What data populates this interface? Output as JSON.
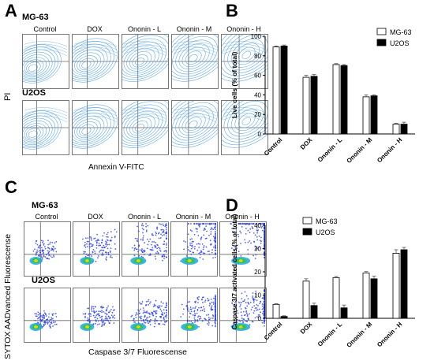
{
  "panels": {
    "A": {
      "letter": "A",
      "rows": [
        "MG-63",
        "U2OS"
      ],
      "columns": [
        "Control",
        "DOX",
        "Ononin - L",
        "Ononin - M",
        "Ononin - H"
      ],
      "y_axis_label": "PI",
      "x_axis_label": "Annexin V-FITC",
      "contour_color": "#4f9bd9"
    },
    "C": {
      "letter": "C",
      "rows": [
        "MG-63",
        "U2OS"
      ],
      "columns": [
        "Control",
        "DOX",
        "Ononin - L",
        "Ononin - M",
        "Ononin - H"
      ],
      "y_axis_label": "SYTOX AADvanced Fluorescense",
      "x_axis_label": "Caspase 3/7 Fluorescense",
      "density_colors": [
        "#2c3fd6",
        "#1fa8e0",
        "#33c24a",
        "#e8d61e"
      ]
    }
  },
  "colors": {
    "mg63": "#ffffff",
    "u2os": "#000000",
    "error_bar": "#555555"
  },
  "chart_data": [
    {
      "panel": "B",
      "type": "bar",
      "title": "",
      "xlabel": "",
      "ylabel": "Live cells (% of total)",
      "ylim": [
        0,
        100
      ],
      "yticks": [
        0,
        20,
        40,
        60,
        80,
        100
      ],
      "categories": [
        "Control",
        "DOX",
        "Ononin - L",
        "Ononin - M",
        "Ononin - H"
      ],
      "legend_position": "top-right",
      "series": [
        {
          "name": "MG-63",
          "values": [
            89,
            58,
            71,
            38,
            10
          ],
          "errors": [
            1,
            2,
            1,
            2,
            1
          ]
        },
        {
          "name": "U2OS",
          "values": [
            90,
            59,
            70,
            39,
            10
          ],
          "errors": [
            1,
            2,
            1,
            1,
            2
          ]
        }
      ]
    },
    {
      "panel": "D",
      "type": "bar",
      "title": "",
      "xlabel": "",
      "ylabel": "Caspase 3/7 activated cells (% of total)",
      "ylim": [
        0,
        40
      ],
      "yticks": [
        0,
        10,
        20,
        30,
        40
      ],
      "categories": [
        "Control",
        "DOX",
        "Ononin - L",
        "Ononin - M",
        "Ononin - H"
      ],
      "legend_position": "top-left",
      "series": [
        {
          "name": "MG-63",
          "values": [
            6,
            16,
            17.5,
            19.5,
            28
          ],
          "errors": [
            0.3,
            1,
            0.5,
            0.6,
            1.5
          ]
        },
        {
          "name": "U2OS",
          "values": [
            0.8,
            5.5,
            4.5,
            17,
            29.5
          ],
          "errors": [
            0.3,
            1,
            1.2,
            1.2,
            1
          ]
        }
      ]
    }
  ]
}
